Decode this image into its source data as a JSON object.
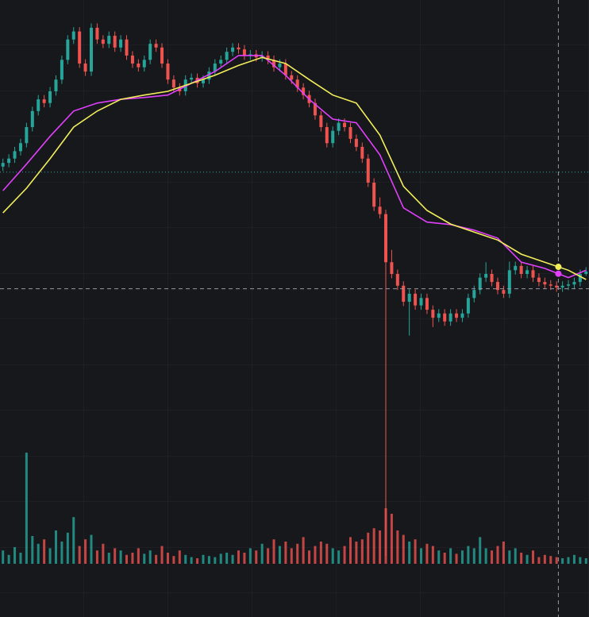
{
  "chart_data": {
    "type": "candlestick",
    "ylim": [
      0,
      100
    ],
    "volume_lim": [
      0,
      100
    ],
    "up_color": "#26a69a",
    "down_color": "#ef5350",
    "price_line": 72.1,
    "crosshair": {
      "index": 94.3,
      "price": 53.2
    },
    "ohlc": [
      [
        73.0,
        74.3,
        72.3,
        73.6
      ],
      [
        73.6,
        75.0,
        72.9,
        74.3
      ],
      [
        74.3,
        76.2,
        73.6,
        75.5
      ],
      [
        75.5,
        77.5,
        74.8,
        76.8
      ],
      [
        76.8,
        80.1,
        76.1,
        79.4
      ],
      [
        79.4,
        82.7,
        78.7,
        82.0
      ],
      [
        82.0,
        84.6,
        81.3,
        83.9
      ],
      [
        83.9,
        84.6,
        82.6,
        83.3
      ],
      [
        83.3,
        85.9,
        82.6,
        85.2
      ],
      [
        85.2,
        87.8,
        84.5,
        87.1
      ],
      [
        87.1,
        91.0,
        86.4,
        90.3
      ],
      [
        90.3,
        94.3,
        89.6,
        93.6
      ],
      [
        93.6,
        95.6,
        92.9,
        94.9
      ],
      [
        94.9,
        95.6,
        89.0,
        89.7
      ],
      [
        89.7,
        90.4,
        87.7,
        88.4
      ],
      [
        88.4,
        96.2,
        87.7,
        95.5
      ],
      [
        95.5,
        96.2,
        92.9,
        93.6
      ],
      [
        93.6,
        94.3,
        92.2,
        92.9
      ],
      [
        92.9,
        94.9,
        92.2,
        94.2
      ],
      [
        94.2,
        94.9,
        91.6,
        92.3
      ],
      [
        92.3,
        94.3,
        91.6,
        93.6
      ],
      [
        93.6,
        94.3,
        90.3,
        91.0
      ],
      [
        91.0,
        91.7,
        89.0,
        89.7
      ],
      [
        89.7,
        90.4,
        88.4,
        89.1
      ],
      [
        89.1,
        91.0,
        88.4,
        90.3
      ],
      [
        90.3,
        93.6,
        89.6,
        92.9
      ],
      [
        92.9,
        93.6,
        91.6,
        92.3
      ],
      [
        92.3,
        93.0,
        89.0,
        89.7
      ],
      [
        89.7,
        90.4,
        86.4,
        87.1
      ],
      [
        87.1,
        87.8,
        85.1,
        85.8
      ],
      [
        85.8,
        86.5,
        84.5,
        85.2
      ],
      [
        85.2,
        87.8,
        84.5,
        87.1
      ],
      [
        87.1,
        88.1,
        86.4,
        87.4
      ],
      [
        87.4,
        88.1,
        85.8,
        86.5
      ],
      [
        86.5,
        87.8,
        85.8,
        87.1
      ],
      [
        87.1,
        89.1,
        86.4,
        88.4
      ],
      [
        88.4,
        90.4,
        87.7,
        89.7
      ],
      [
        89.7,
        91.0,
        89.0,
        90.3
      ],
      [
        90.3,
        92.3,
        89.6,
        91.6
      ],
      [
        91.6,
        93.0,
        90.9,
        92.3
      ],
      [
        92.3,
        93.0,
        91.3,
        92.0
      ],
      [
        92.0,
        92.7,
        90.3,
        91.0
      ],
      [
        91.0,
        91.9,
        90.3,
        91.2
      ],
      [
        91.2,
        91.9,
        90.0,
        90.7
      ],
      [
        90.7,
        91.7,
        90.0,
        91.0
      ],
      [
        91.0,
        91.7,
        89.6,
        90.3
      ],
      [
        90.3,
        91.0,
        88.4,
        89.1
      ],
      [
        89.1,
        90.4,
        88.4,
        89.7
      ],
      [
        89.7,
        90.4,
        87.1,
        87.8
      ],
      [
        87.8,
        88.5,
        86.4,
        87.1
      ],
      [
        87.1,
        87.8,
        85.1,
        85.8
      ],
      [
        85.8,
        86.5,
        83.9,
        84.6
      ],
      [
        84.6,
        85.3,
        82.6,
        83.3
      ],
      [
        83.3,
        84.0,
        80.6,
        81.3
      ],
      [
        81.3,
        82.0,
        78.7,
        79.4
      ],
      [
        79.4,
        80.1,
        76.1,
        76.8
      ],
      [
        76.8,
        79.5,
        76.1,
        78.8
      ],
      [
        78.8,
        80.8,
        78.1,
        80.1
      ],
      [
        80.1,
        80.8,
        78.7,
        79.4
      ],
      [
        79.4,
        80.1,
        76.8,
        77.5
      ],
      [
        77.5,
        78.2,
        75.5,
        76.2
      ],
      [
        76.2,
        76.9,
        73.6,
        74.3
      ],
      [
        74.3,
        75.0,
        69.7,
        70.4
      ],
      [
        70.4,
        71.1,
        65.8,
        66.5
      ],
      [
        66.5,
        68.0,
        64.6,
        65.3
      ],
      [
        65.3,
        66.0,
        9.9,
        57.5
      ],
      [
        57.5,
        59.5,
        54.9,
        55.6
      ],
      [
        55.6,
        56.3,
        53.0,
        53.7
      ],
      [
        53.7,
        54.4,
        50.4,
        51.1
      ],
      [
        51.1,
        53.1,
        45.6,
        52.4
      ],
      [
        52.4,
        53.1,
        49.8,
        50.5
      ],
      [
        50.5,
        52.4,
        49.8,
        51.7
      ],
      [
        51.7,
        52.4,
        49.1,
        49.8
      ],
      [
        49.8,
        50.5,
        47.0,
        48.5
      ],
      [
        48.5,
        49.9,
        47.8,
        49.2
      ],
      [
        49.2,
        49.9,
        47.2,
        47.9
      ],
      [
        47.9,
        49.9,
        47.2,
        49.2
      ],
      [
        49.2,
        49.9,
        47.8,
        48.5
      ],
      [
        48.5,
        49.9,
        47.8,
        49.2
      ],
      [
        49.2,
        52.4,
        48.5,
        51.7
      ],
      [
        51.7,
        53.7,
        51.0,
        53.0
      ],
      [
        53.0,
        55.7,
        52.3,
        55.0
      ],
      [
        55.0,
        57.5,
        54.3,
        55.6
      ],
      [
        55.6,
        56.3,
        53.6,
        54.3
      ],
      [
        54.3,
        55.0,
        52.3,
        53.0
      ],
      [
        53.0,
        53.7,
        51.7,
        52.4
      ],
      [
        52.4,
        57.6,
        51.7,
        56.2
      ],
      [
        56.2,
        57.6,
        55.5,
        56.9
      ],
      [
        56.9,
        57.6,
        54.9,
        55.6
      ],
      [
        55.6,
        56.9,
        54.9,
        56.2
      ],
      [
        56.2,
        56.9,
        54.3,
        55.0
      ],
      [
        55.0,
        55.7,
        53.6,
        54.3
      ],
      [
        54.3,
        55.0,
        53.2,
        53.9
      ],
      [
        53.9,
        54.6,
        53.0,
        53.7
      ],
      [
        53.7,
        54.4,
        52.7,
        53.4
      ],
      [
        53.4,
        54.4,
        52.7,
        53.7
      ],
      [
        53.7,
        54.6,
        53.0,
        53.9
      ],
      [
        53.9,
        55.0,
        53.2,
        54.3
      ],
      [
        54.3,
        56.3,
        53.6,
        55.6
      ],
      [
        55.6,
        56.7,
        55.3,
        56.0
      ]
    ],
    "volume": [
      12,
      8,
      15,
      10,
      100,
      25,
      18,
      22,
      14,
      30,
      20,
      28,
      42,
      16,
      22,
      26,
      12,
      18,
      10,
      14,
      12,
      8,
      10,
      14,
      9,
      12,
      8,
      16,
      10,
      7,
      12,
      8,
      6,
      5,
      8,
      7,
      6,
      9,
      10,
      8,
      12,
      10,
      14,
      12,
      18,
      14,
      22,
      16,
      20,
      14,
      18,
      24,
      12,
      16,
      20,
      18,
      14,
      12,
      16,
      24,
      20,
      22,
      28,
      32,
      30,
      50,
      45,
      30,
      26,
      20,
      22,
      14,
      18,
      16,
      12,
      10,
      14,
      9,
      12,
      16,
      14,
      24,
      14,
      12,
      16,
      20,
      12,
      14,
      10,
      8,
      12,
      6,
      8,
      7,
      6,
      5,
      6,
      8,
      6,
      5
    ],
    "lines": [
      {
        "color": "#e040fb",
        "x": [
          0,
          4,
          8,
          12,
          16,
          20,
          24,
          28,
          32,
          36,
          40,
          44,
          48,
          52,
          56,
          60,
          64,
          68,
          72,
          76,
          80,
          84,
          88,
          92,
          96,
          99
        ],
        "values": [
          69.1,
          73.4,
          77.9,
          82.0,
          83.3,
          83.9,
          84.2,
          84.6,
          86.5,
          88.4,
          91.0,
          91.0,
          87.8,
          83.9,
          80.7,
          80.1,
          74.9,
          66.3,
          64.0,
          63.6,
          62.7,
          61.4,
          57.5,
          56.5,
          55.0,
          56.2
        ]
      },
      {
        "color": "#f2ee5a",
        "x": [
          0,
          4,
          8,
          12,
          16,
          20,
          24,
          28,
          32,
          36,
          40,
          44,
          48,
          52,
          56,
          60,
          64,
          68,
          72,
          76,
          80,
          84,
          88,
          92,
          96,
          99
        ],
        "values": [
          65.5,
          69.5,
          74.3,
          79.4,
          82.0,
          83.9,
          84.6,
          85.2,
          86.5,
          87.8,
          89.4,
          90.7,
          89.7,
          87.1,
          84.6,
          83.3,
          78.1,
          69.8,
          65.9,
          63.7,
          62.4,
          61.1,
          58.8,
          57.5,
          56.2,
          54.7
        ]
      }
    ]
  }
}
